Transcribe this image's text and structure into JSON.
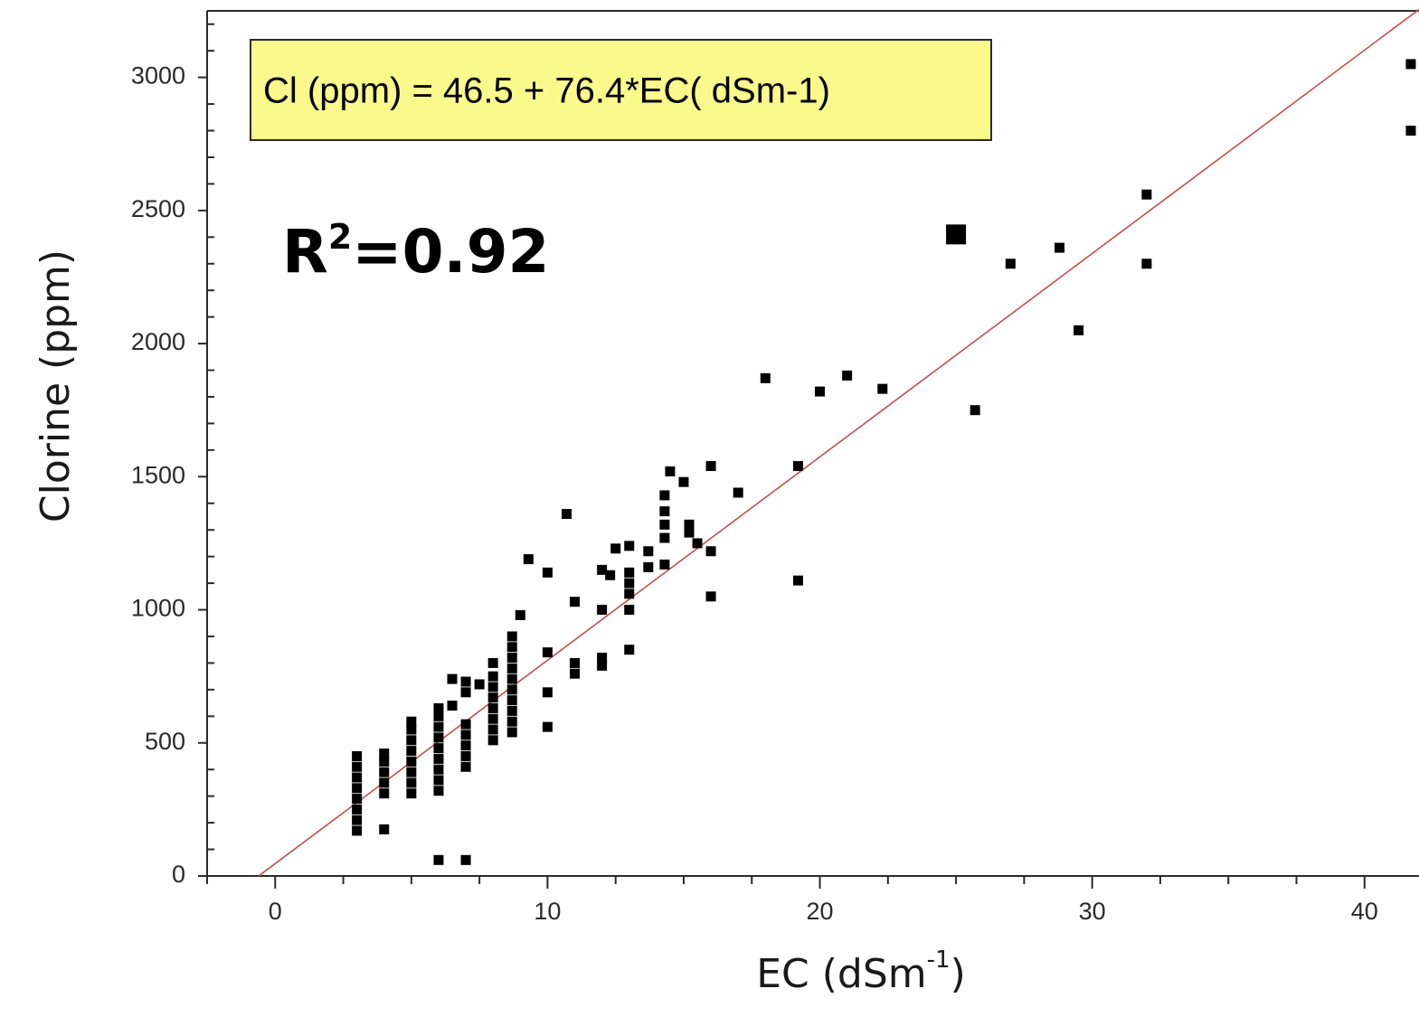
{
  "chart_data": {
    "type": "scatter",
    "title": "",
    "xlabel": "EC (dSm",
    "xlabel_sup": "-1",
    "xlabel_close": ")",
    "ylabel": "Clorine (ppm)",
    "xlim": [
      -2.5,
      42
    ],
    "ylim": [
      0,
      3250
    ],
    "xticks": [
      0,
      10,
      20,
      30,
      40
    ],
    "yticks": [
      0,
      500,
      1000,
      1500,
      2000,
      2500,
      3000
    ],
    "grid": false,
    "equation_label": "Cl (ppm) = 46.5 + 76.4*EC( dSm-1)",
    "r2_label": {
      "base": "R",
      "sup": "2",
      "rest": "=0.92"
    },
    "fit": {
      "intercept": 46.5,
      "slope": 76.4
    },
    "colors": {
      "points": "#000000",
      "fit_line": "#c0504d",
      "equation_box": "#fafa8c"
    },
    "series": [
      {
        "points": [
          [
            3,
            170
          ],
          [
            3,
            210
          ],
          [
            3,
            250
          ],
          [
            3,
            290
          ],
          [
            3,
            330
          ],
          [
            3,
            370
          ],
          [
            3,
            410
          ],
          [
            3,
            450
          ],
          [
            4,
            175
          ],
          [
            4,
            310
          ],
          [
            4,
            350
          ],
          [
            4,
            390
          ],
          [
            4,
            430
          ],
          [
            4,
            460
          ],
          [
            5,
            310
          ],
          [
            5,
            350
          ],
          [
            5,
            390
          ],
          [
            5,
            430
          ],
          [
            5,
            470
          ],
          [
            5,
            510
          ],
          [
            5,
            550
          ],
          [
            5,
            580
          ],
          [
            6,
            60
          ],
          [
            6,
            320
          ],
          [
            6,
            360
          ],
          [
            6,
            400
          ],
          [
            6,
            440
          ],
          [
            6,
            480
          ],
          [
            6,
            520
          ],
          [
            6,
            560
          ],
          [
            6,
            600
          ],
          [
            6,
            630
          ],
          [
            6.5,
            640
          ],
          [
            6.5,
            740
          ],
          [
            7,
            60
          ],
          [
            7,
            410
          ],
          [
            7,
            450
          ],
          [
            7,
            490
          ],
          [
            7,
            530
          ],
          [
            7,
            570
          ],
          [
            7,
            690
          ],
          [
            7,
            730
          ],
          [
            7.5,
            720
          ],
          [
            8,
            510
          ],
          [
            8,
            550
          ],
          [
            8,
            590
          ],
          [
            8,
            630
          ],
          [
            8,
            670
          ],
          [
            8,
            710
          ],
          [
            8,
            750
          ],
          [
            8,
            800
          ],
          [
            8.7,
            540
          ],
          [
            8.7,
            580
          ],
          [
            8.7,
            620
          ],
          [
            8.7,
            660
          ],
          [
            8.7,
            700
          ],
          [
            8.7,
            740
          ],
          [
            8.7,
            780
          ],
          [
            8.7,
            820
          ],
          [
            8.7,
            860
          ],
          [
            8.7,
            900
          ],
          [
            9,
            980
          ],
          [
            9.3,
            1190
          ],
          [
            10,
            560
          ],
          [
            10,
            690
          ],
          [
            10,
            840
          ],
          [
            10,
            1140
          ],
          [
            10.7,
            1360
          ],
          [
            11,
            760
          ],
          [
            11,
            800
          ],
          [
            11,
            1030
          ],
          [
            12,
            790
          ],
          [
            12,
            820
          ],
          [
            12,
            1000
          ],
          [
            12,
            1150
          ],
          [
            12.3,
            1130
          ],
          [
            12.5,
            1230
          ],
          [
            13,
            850
          ],
          [
            13,
            1000
          ],
          [
            13,
            1060
          ],
          [
            13,
            1100
          ],
          [
            13,
            1140
          ],
          [
            13,
            1240
          ],
          [
            13.7,
            1160
          ],
          [
            13.7,
            1220
          ],
          [
            14.3,
            1170
          ],
          [
            14.3,
            1270
          ],
          [
            14.3,
            1320
          ],
          [
            14.3,
            1370
          ],
          [
            14.3,
            1430
          ],
          [
            14.5,
            1520
          ],
          [
            15,
            1480
          ],
          [
            15.2,
            1290
          ],
          [
            15.2,
            1320
          ],
          [
            15.5,
            1250
          ],
          [
            16,
            1050
          ],
          [
            16,
            1220
          ],
          [
            16,
            1540
          ],
          [
            17,
            1440
          ],
          [
            18,
            1870
          ],
          [
            19.2,
            1110
          ],
          [
            19.2,
            1540
          ],
          [
            20,
            1820
          ],
          [
            21,
            1880
          ],
          [
            22.3,
            1830
          ],
          [
            25,
            2410
          ],
          [
            25.7,
            1750
          ],
          [
            27,
            2300
          ],
          [
            28.8,
            2360
          ],
          [
            29.5,
            2050
          ],
          [
            32,
            2300
          ],
          [
            32,
            2560
          ],
          [
            41.7,
            2800
          ],
          [
            41.7,
            3050
          ]
        ]
      }
    ]
  }
}
